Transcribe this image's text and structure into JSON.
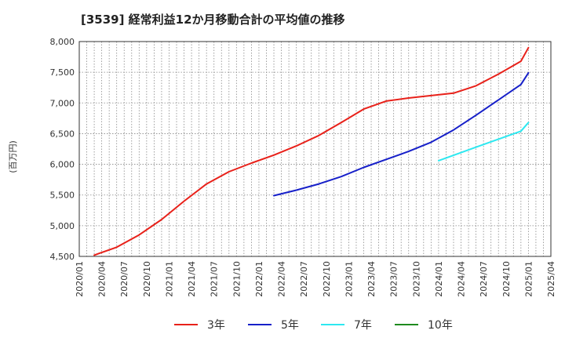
{
  "chart_data": {
    "type": "line",
    "title": "[3539]  経常利益12か月移動合計の平均値の推移",
    "ylabel": "(百万円)",
    "xlabel": "",
    "ylim": [
      4500,
      8000
    ],
    "yticks": [
      4500,
      5000,
      5500,
      6000,
      6500,
      7000,
      7500,
      8000
    ],
    "ytick_labels": [
      "4,500",
      "5,000",
      "5,500",
      "6,000",
      "6,500",
      "7,000",
      "7,500",
      "8,000"
    ],
    "xticks": [
      "2020/01",
      "2020/04",
      "2020/07",
      "2020/10",
      "2021/01",
      "2021/04",
      "2021/07",
      "2021/10",
      "2022/01",
      "2022/04",
      "2022/07",
      "2022/10",
      "2023/01",
      "2023/04",
      "2023/07",
      "2023/10",
      "2024/01",
      "2024/04",
      "2024/07",
      "2024/10",
      "2025/01",
      "2025/04"
    ],
    "grid": true,
    "legend_position": "bottom",
    "series": [
      {
        "name": "3年",
        "color": "#e8211a",
        "points": [
          [
            "2020/03",
            4520
          ],
          [
            "2020/06",
            4650
          ],
          [
            "2020/09",
            4850
          ],
          [
            "2020/12",
            5100
          ],
          [
            "2021/03",
            5400
          ],
          [
            "2021/06",
            5680
          ],
          [
            "2021/09",
            5880
          ],
          [
            "2021/12",
            6020
          ],
          [
            "2022/03",
            6150
          ],
          [
            "2022/06",
            6300
          ],
          [
            "2022/09",
            6470
          ],
          [
            "2022/12",
            6680
          ],
          [
            "2023/03",
            6900
          ],
          [
            "2023/06",
            7030
          ],
          [
            "2023/09",
            7080
          ],
          [
            "2023/12",
            7120
          ],
          [
            "2024/03",
            7160
          ],
          [
            "2024/06",
            7280
          ],
          [
            "2024/09",
            7470
          ],
          [
            "2024/12",
            7680
          ],
          [
            "2025/01",
            7900
          ]
        ]
      },
      {
        "name": "5年",
        "color": "#1720c9",
        "points": [
          [
            "2022/03",
            5490
          ],
          [
            "2022/06",
            5580
          ],
          [
            "2022/09",
            5680
          ],
          [
            "2022/12",
            5800
          ],
          [
            "2023/03",
            5950
          ],
          [
            "2023/06",
            6080
          ],
          [
            "2023/09",
            6210
          ],
          [
            "2023/12",
            6360
          ],
          [
            "2024/03",
            6560
          ],
          [
            "2024/06",
            6800
          ],
          [
            "2024/09",
            7050
          ],
          [
            "2024/12",
            7300
          ],
          [
            "2025/01",
            7490
          ]
        ]
      },
      {
        "name": "7年",
        "color": "#2de8f0",
        "points": [
          [
            "2024/01",
            6060
          ],
          [
            "2024/06",
            6280
          ],
          [
            "2024/12",
            6540
          ],
          [
            "2025/01",
            6680
          ]
        ]
      },
      {
        "name": "10年",
        "color": "#1e8a1e",
        "points": []
      }
    ]
  }
}
